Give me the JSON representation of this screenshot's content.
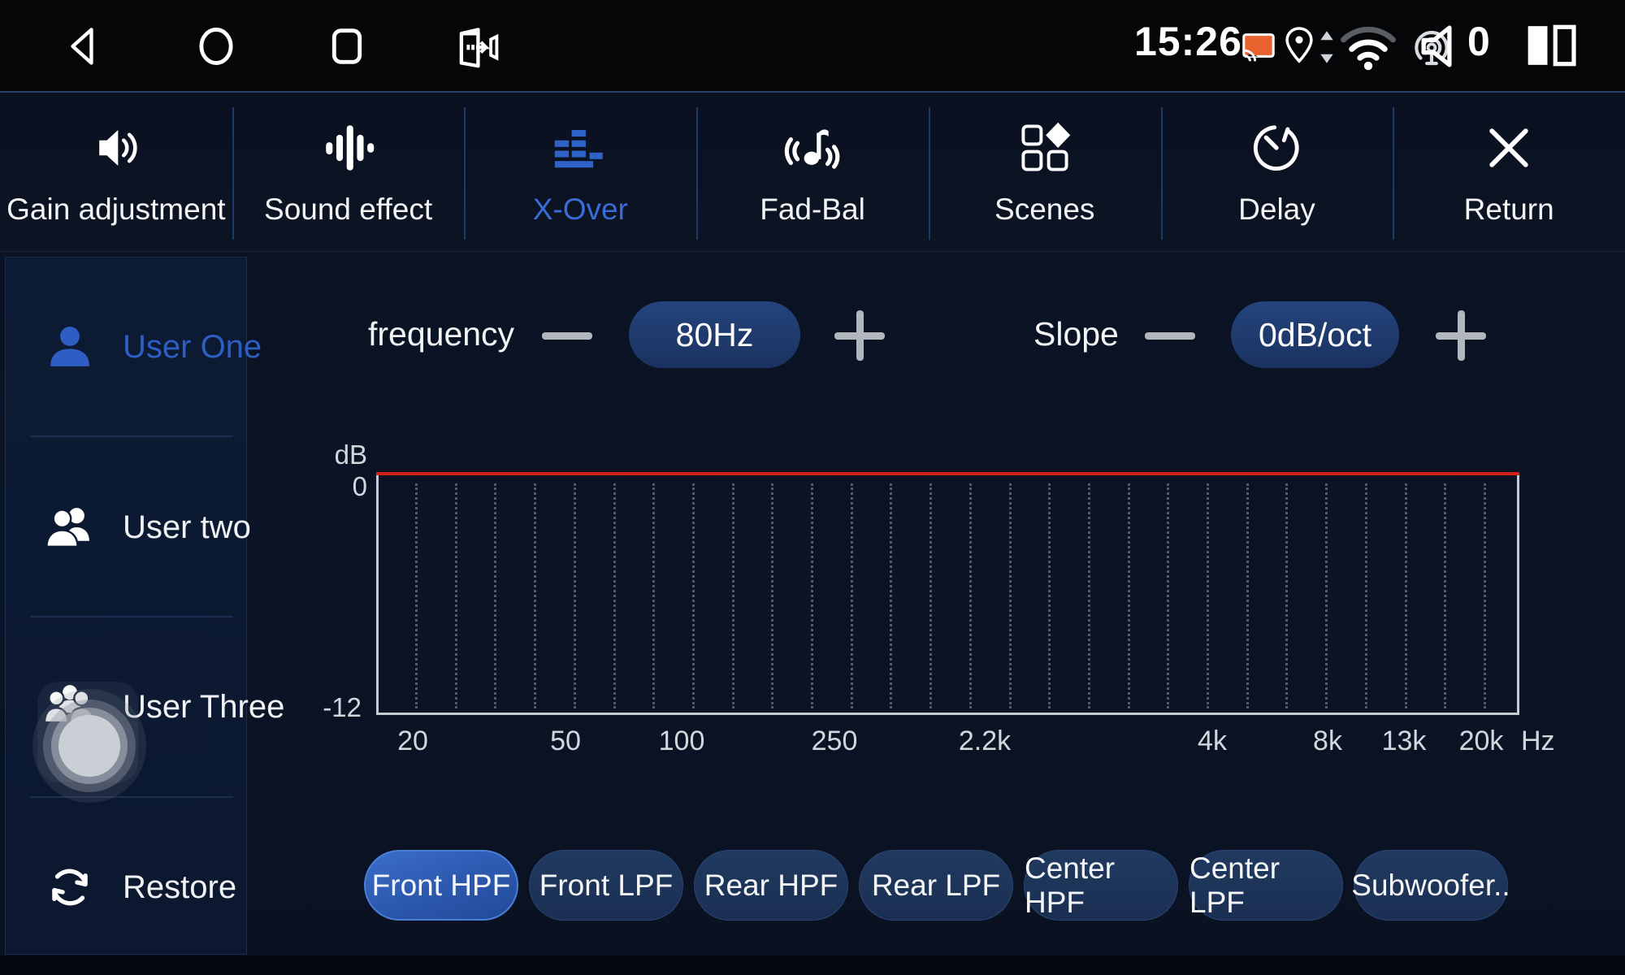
{
  "status_bar": {
    "time": "15:26",
    "volume_level": "0",
    "icons": [
      "back-icon",
      "home-icon",
      "recents-icon",
      "exit-app-icon",
      "cast-icon",
      "location-icon",
      "data-arrows-icon",
      "wifi-icon",
      "hotspot-icon",
      "volume-icon",
      "split-screen-icon"
    ]
  },
  "tabs": [
    {
      "label": "Gain adjustment",
      "icon": "speaker-icon",
      "active": false
    },
    {
      "label": "Sound effect",
      "icon": "equalizer-bars-icon",
      "active": false
    },
    {
      "label": "X-Over",
      "icon": "crossover-levels-icon",
      "active": true
    },
    {
      "label": "Fad-Bal",
      "icon": "music-note-waves-icon",
      "active": false
    },
    {
      "label": "Scenes",
      "icon": "scenes-grid-icon",
      "active": false
    },
    {
      "label": "Delay",
      "icon": "timer-icon",
      "active": false
    },
    {
      "label": "Return",
      "icon": "close-x-icon",
      "active": false
    }
  ],
  "sidebar": {
    "items": [
      {
        "label": "User One",
        "icon": "single-user-icon",
        "active": true
      },
      {
        "label": "User two",
        "icon": "two-users-icon",
        "active": false
      },
      {
        "label": "User Three",
        "icon": "three-users-icon",
        "active": false
      },
      {
        "label": "Restore",
        "icon": "restore-refresh-icon",
        "active": false
      }
    ]
  },
  "controls": {
    "frequency": {
      "label": "frequency",
      "value": "80Hz"
    },
    "slope": {
      "label": "Slope",
      "value": "0dB/oct"
    }
  },
  "chart_data": {
    "type": "line",
    "title": "",
    "ylabel": "dB",
    "x_unit": "Hz",
    "y_ticks": [
      "0",
      "-12"
    ],
    "ylim": [
      -12,
      0
    ],
    "x_ticks": [
      "20",
      "50",
      "100",
      "250",
      "2.2k",
      "4k",
      "8k",
      "13k",
      "20k"
    ],
    "series": [
      {
        "name": "crossover-response",
        "color": "#d42118",
        "x": [
          20,
          50,
          100,
          250,
          2200,
          4000,
          8000,
          13000,
          20000
        ],
        "values": [
          0,
          0,
          0,
          0,
          0,
          0,
          0,
          0,
          0
        ]
      }
    ],
    "grid": "vertical-dotted",
    "legend": "none"
  },
  "filter_buttons": [
    {
      "label": "Front HPF",
      "selected": true
    },
    {
      "label": "Front LPF",
      "selected": false
    },
    {
      "label": "Rear HPF",
      "selected": false
    },
    {
      "label": "Rear LPF",
      "selected": false
    },
    {
      "label": "Center HPF",
      "selected": false
    },
    {
      "label": "Center LPF",
      "selected": false
    },
    {
      "label": "Subwoofer..",
      "selected": false
    }
  ],
  "colors": {
    "accent_blue": "#3a6bd6",
    "active_user_blue": "#2e5dc4",
    "selected_pill": "#2a56ab",
    "value_pill": "#1e3a69",
    "red_line": "#d42118",
    "axis_gray": "#c6cbd3",
    "cast_orange": "#e8622d"
  }
}
